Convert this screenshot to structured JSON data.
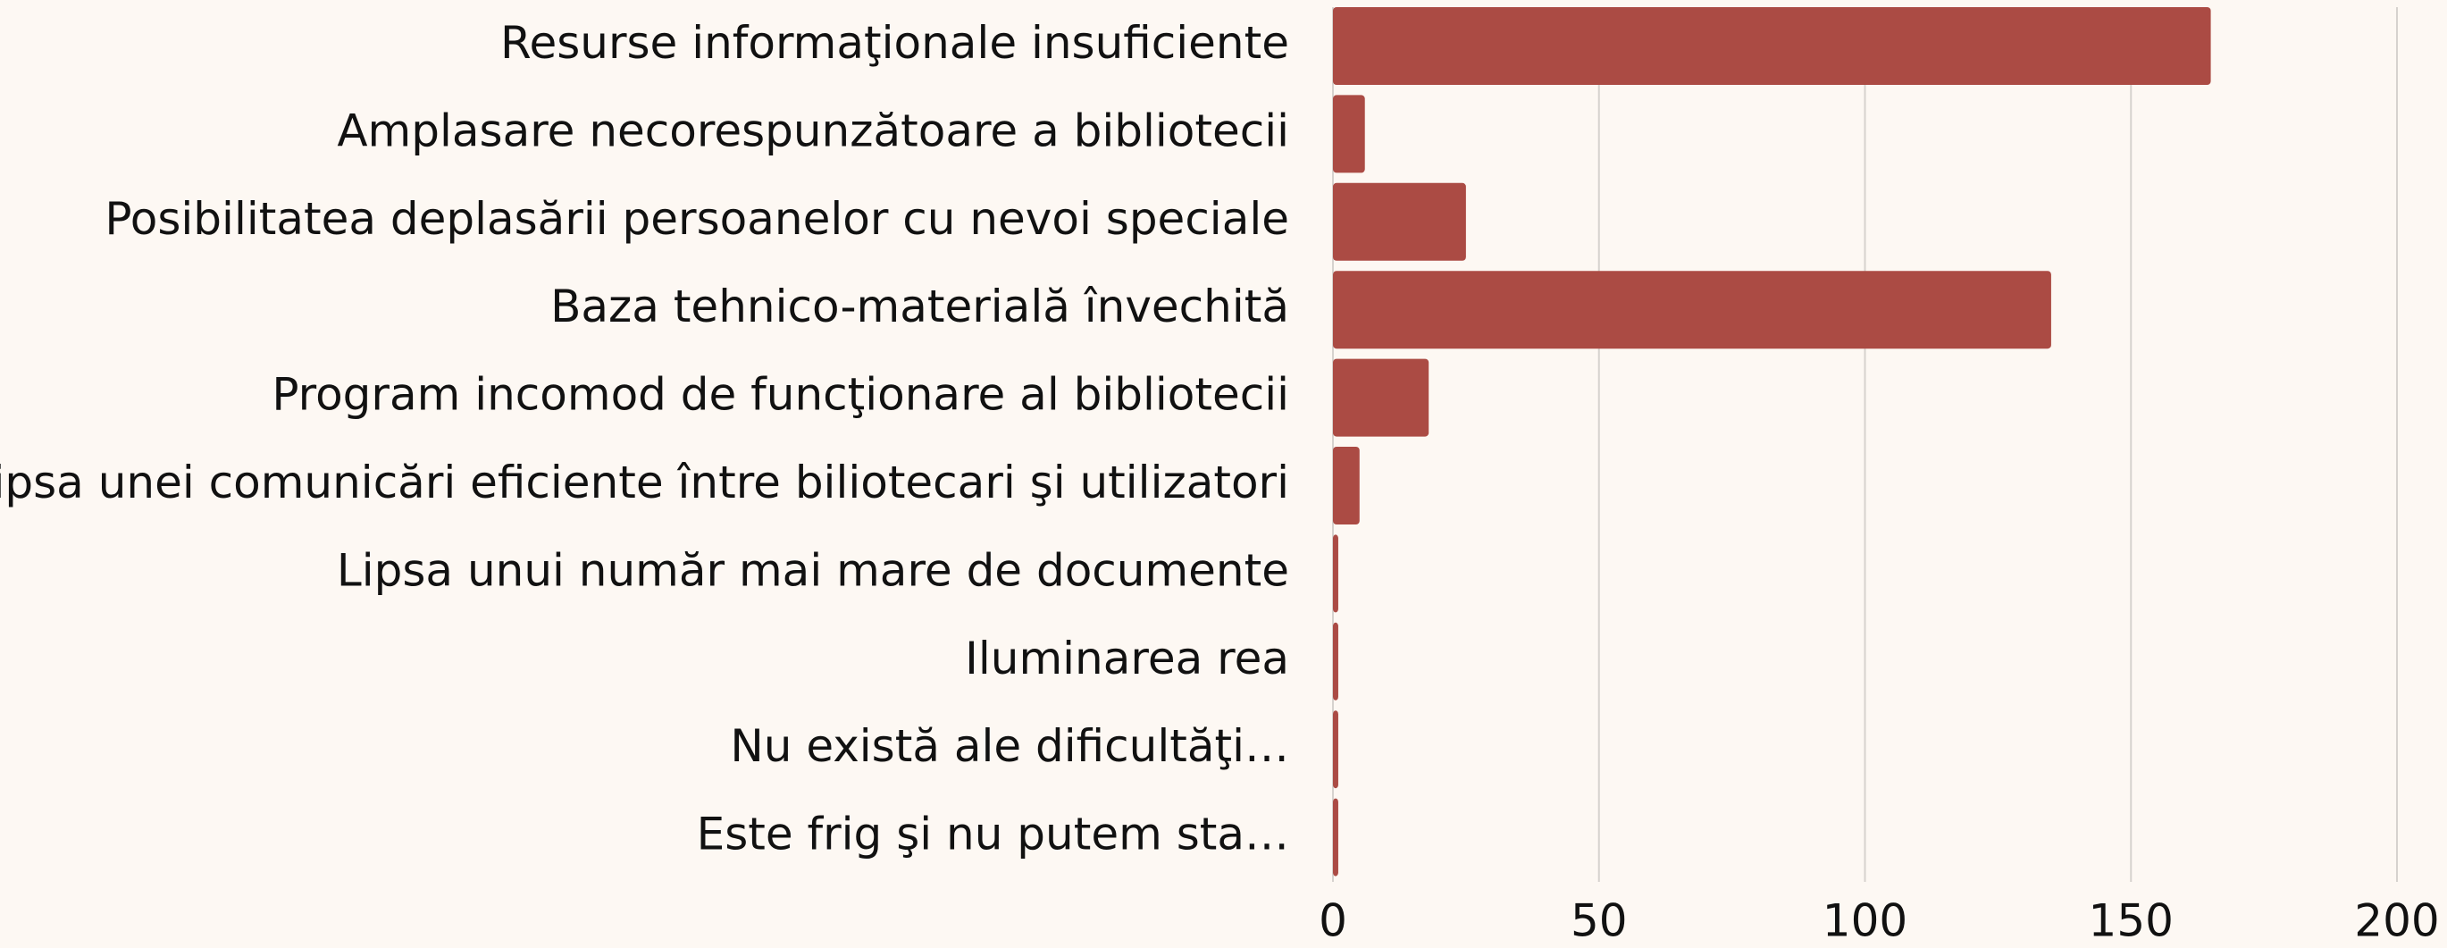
{
  "chart_data": {
    "type": "barh",
    "categories": [
      "Resurse informaţionale insuficiente",
      "Amplasare necorespunzătoare a bibliotecii",
      "Posibilitatea deplasării persoanelor cu nevoi speciale",
      "Baza tehnico-materială învechită",
      "Program incomod de funcţionare al bibliotecii",
      "Lipsa unei comunicări eficiente între biliotecari şi utilizatori",
      "Lipsa unui număr mai mare de documente",
      "Iluminarea rea",
      "Nu există ale dificultăţi…",
      "Este frig şi nu putem sta…"
    ],
    "values": [
      165,
      6,
      25,
      135,
      18,
      5,
      1,
      1,
      1,
      1
    ],
    "color": "#ab4b44",
    "xlim": [
      0,
      200
    ],
    "xticks": [
      0,
      50,
      100,
      150,
      200
    ],
    "grid": true
  }
}
